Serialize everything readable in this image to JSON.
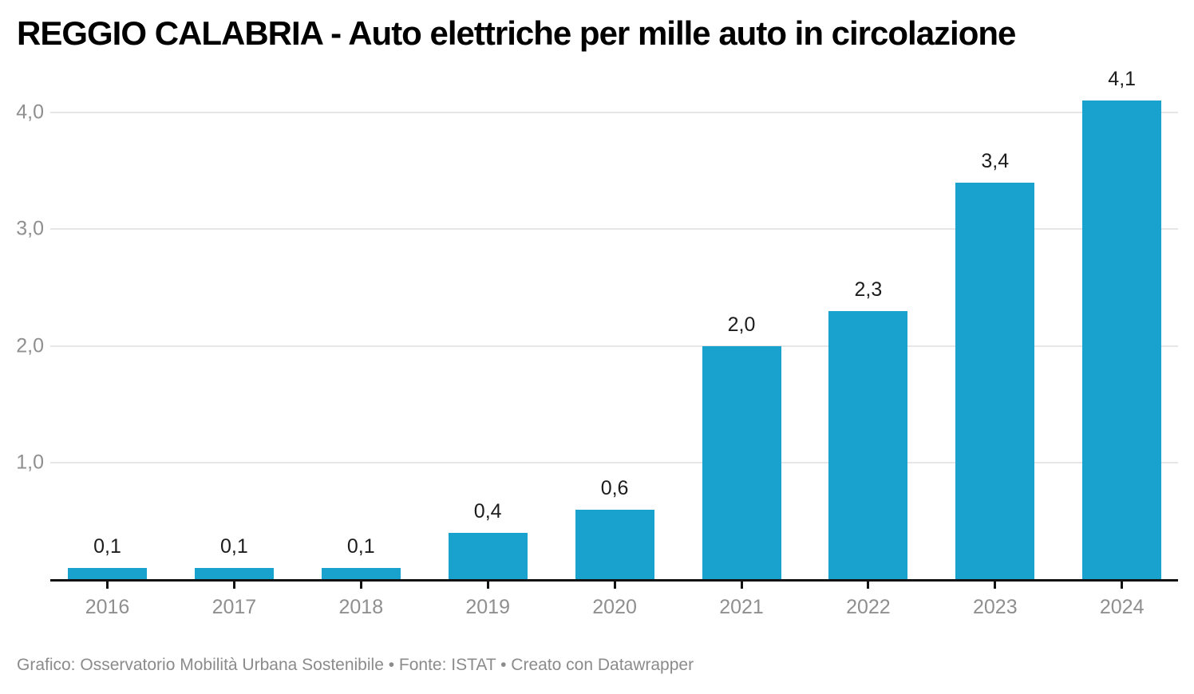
{
  "chart_data": {
    "type": "bar",
    "title": "REGGIO CALABRIA - Auto elettriche per mille auto in circolazione",
    "xlabel": "",
    "ylabel": "",
    "categories": [
      "2016",
      "2017",
      "2018",
      "2019",
      "2020",
      "2021",
      "2022",
      "2023",
      "2024"
    ],
    "values": [
      0.1,
      0.1,
      0.1,
      0.4,
      0.6,
      2.0,
      2.3,
      3.4,
      4.1
    ],
    "value_labels": [
      "0,1",
      "0,1",
      "0,1",
      "0,4",
      "0,6",
      "2,0",
      "2,3",
      "3,4",
      "4,1"
    ],
    "yticks": [
      {
        "value": 1,
        "label": "1,0"
      },
      {
        "value": 2,
        "label": "2,0"
      },
      {
        "value": 3,
        "label": "3,0"
      },
      {
        "value": 4,
        "label": "4,0"
      }
    ],
    "ylim": [
      0,
      4.35
    ],
    "grid": "horizontal",
    "legend": "none",
    "value_label_position": "above-bar",
    "number_format": "comma-decimal",
    "bar_color": "#19a2ce"
  },
  "footer": {
    "text": "Grafico: Osservatorio Mobilità Urbana Sostenibile • Fonte: ISTAT • Creato con Datawrapper"
  },
  "colors": {
    "bar": "#19a2ce",
    "gridline": "#e6e6e6",
    "axis": "#121212",
    "tick_label": "#8f8f8f",
    "value_label": "#1c1c1c",
    "title": "#000000",
    "footer": "#8b8b8b",
    "background": "#ffffff"
  }
}
